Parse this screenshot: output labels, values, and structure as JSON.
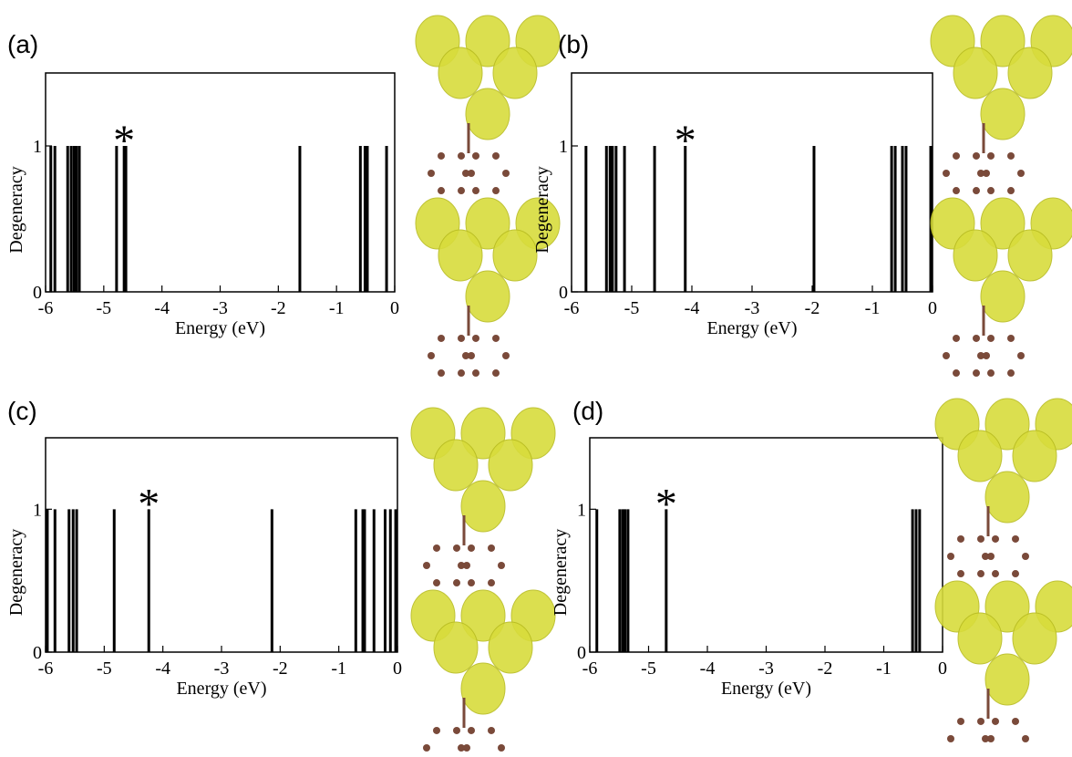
{
  "chart_data": [
    {
      "type": "stick",
      "title": "(a)",
      "x_label": "Energy (eV)",
      "y_label": "Degeneracy",
      "x": [
        -5.91,
        -5.84,
        -5.62,
        -5.56,
        -5.51,
        -5.47,
        -5.42,
        -4.78,
        -4.65,
        -4.62,
        -1.63,
        -0.59,
        -0.51,
        -0.47,
        -0.14
      ],
      "values": [
        1,
        1,
        1,
        1,
        1,
        1,
        1,
        1,
        1,
        1,
        1,
        1,
        1,
        1,
        1
      ],
      "color": "#000000",
      "xlim": [
        -6,
        0
      ],
      "ylim": [
        0,
        1.5
      ],
      "xticks": [
        -6,
        -5,
        -4,
        -3,
        -2,
        -1,
        0
      ],
      "yticks": [
        0,
        1
      ],
      "annotations": [
        {
          "text": "*",
          "x": -4.65,
          "y": 1.1
        }
      ]
    },
    {
      "type": "stick",
      "title": "(b)",
      "x_label": "Energy (eV)",
      "y_label": "Degeneracy",
      "x": [
        -5.76,
        -5.42,
        -5.36,
        -5.32,
        -5.26,
        -5.12,
        -4.62,
        -4.11,
        -1.97,
        -0.68,
        -0.62,
        -0.5,
        -0.44,
        -0.03
      ],
      "values": [
        1,
        1,
        1,
        1,
        1,
        1,
        1,
        1,
        1,
        1,
        1,
        1,
        1,
        1
      ],
      "color": "#000000",
      "xlim": [
        -6,
        0
      ],
      "ylim": [
        0,
        1.5
      ],
      "xticks": [
        -6,
        -5,
        -4,
        -3,
        -2,
        -1,
        0
      ],
      "yticks": [
        0,
        1
      ],
      "annotations": [
        {
          "text": "*",
          "x": -4.11,
          "y": 1.1
        }
      ]
    },
    {
      "type": "stick",
      "title": "(c)",
      "x_label": "Energy (eV)",
      "y_label": "Degeneracy",
      "x": [
        -5.97,
        -5.84,
        -5.6,
        -5.53,
        -5.47,
        -4.83,
        -4.24,
        -2.14,
        -0.71,
        -0.59,
        -0.56,
        -0.4,
        -0.21,
        -0.12,
        -0.03
      ],
      "values": [
        1,
        1,
        1,
        1,
        1,
        1,
        1,
        1,
        1,
        1,
        1,
        1,
        1,
        1,
        1
      ],
      "color": "#000000",
      "xlim": [
        -6,
        0
      ],
      "ylim": [
        0,
        1.5
      ],
      "xticks": [
        -6,
        -5,
        -4,
        -3,
        -2,
        -1,
        0
      ],
      "yticks": [
        0,
        1
      ],
      "annotations": [
        {
          "text": "*",
          "x": -4.24,
          "y": 1.1
        }
      ]
    },
    {
      "type": "stick",
      "title": "(d)",
      "x_label": "Energy (eV)",
      "y_label": "Degeneracy",
      "x": [
        -5.88,
        -5.49,
        -5.44,
        -5.4,
        -5.35,
        -4.7,
        -0.51,
        -0.45,
        -0.39
      ],
      "values": [
        1,
        1,
        1,
        1,
        1,
        1,
        1,
        1,
        1
      ],
      "color": "#000000",
      "xlim": [
        -6,
        0
      ],
      "ylim": [
        0,
        1.5
      ],
      "xticks": [
        -6,
        -5,
        -4,
        -3,
        -2,
        -1,
        0
      ],
      "yticks": [
        0,
        1
      ],
      "annotations": [
        {
          "text": "*",
          "x": -4.7,
          "y": 1.1
        }
      ]
    }
  ]
}
